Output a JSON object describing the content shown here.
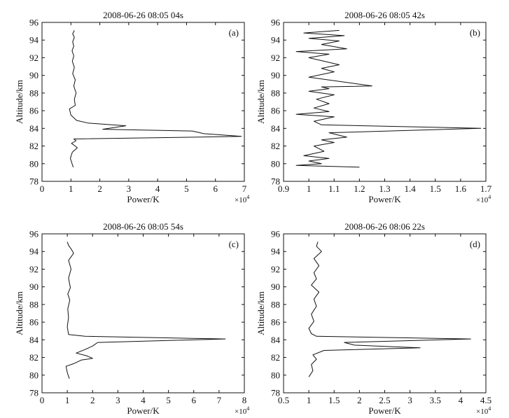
{
  "chart_data": [
    {
      "type": "line",
      "panel_label": "(a)",
      "title": "2008-06-26 08:05 04s",
      "xlabel": "Power/K",
      "ylabel": "Altitude/km",
      "x_multiplier": "×10",
      "x_multiplier_exp": "4",
      "xlim": [
        0,
        7
      ],
      "ylim": [
        78,
        96
      ],
      "xticks": [
        0,
        1,
        2,
        3,
        4,
        5,
        6,
        7
      ],
      "xtick_labels": [
        "0",
        "1",
        "2",
        "3",
        "4",
        "5",
        "6",
        "7"
      ],
      "yticks": [
        78,
        80,
        82,
        84,
        86,
        88,
        90,
        92,
        94,
        96
      ],
      "ytick_labels": [
        "78",
        "80",
        "82",
        "84",
        "86",
        "88",
        "90",
        "92",
        "94",
        "96"
      ],
      "series": [
        {
          "x": [
            1.08,
            1.03,
            0.98,
            1.05,
            1.22,
            1.15,
            1.02,
            1.18,
            1.1,
            5.3,
            6.9,
            5.6,
            5.2,
            2.1,
            2.9,
            1.6,
            1.2,
            1.0,
            0.95,
            1.15,
            1.12,
            1.18,
            1.1,
            1.15,
            1.06,
            1.12,
            1.05,
            1.1,
            1.04,
            1.1,
            1.06,
            1.12,
            1.06,
            1.12
          ],
          "y": [
            79.6,
            80.1,
            80.6,
            81.3,
            81.8,
            82.0,
            82.3,
            82.6,
            82.8,
            83.0,
            83.1,
            83.4,
            83.7,
            83.9,
            84.3,
            84.6,
            84.9,
            85.5,
            86.2,
            86.6,
            87.3,
            88.0,
            88.8,
            89.5,
            90.2,
            90.9,
            91.6,
            92.2,
            92.8,
            93.3,
            93.8,
            94.3,
            94.7,
            95.1
          ]
        }
      ]
    },
    {
      "type": "line",
      "panel_label": "(b)",
      "title": "2008-06-26 08:05 42s",
      "xlabel": "Power/K",
      "ylabel": "Altitude/km",
      "x_multiplier": "×10",
      "x_multiplier_exp": "4",
      "xlim": [
        0.9,
        1.7
      ],
      "ylim": [
        78,
        96
      ],
      "xticks": [
        0.9,
        1.0,
        1.1,
        1.2,
        1.3,
        1.4,
        1.5,
        1.6,
        1.7
      ],
      "xtick_labels": [
        "0.9",
        "1",
        "1.1",
        "1.2",
        "1.3",
        "1.4",
        "1.5",
        "1.6",
        "1.7"
      ],
      "yticks": [
        78,
        80,
        82,
        84,
        86,
        88,
        90,
        92,
        94,
        96
      ],
      "ytick_labels": [
        "78",
        "80",
        "82",
        "84",
        "86",
        "88",
        "90",
        "92",
        "94",
        "96"
      ],
      "series": [
        {
          "x": [
            1.2,
            0.95,
            1.05,
            1.0,
            1.08,
            0.98,
            1.06,
            1.02,
            1.1,
            1.05,
            1.15,
            1.08,
            1.68,
            1.05,
            1.02,
            1.1,
            0.95,
            1.08,
            1.02,
            1.08,
            1.03,
            1.1,
            1.0,
            1.08,
            1.05,
            1.25,
            1.0,
            1.1,
            1.05,
            1.12,
            1.0,
            1.08,
            0.95,
            1.15,
            1.05,
            1.12,
            1.0,
            1.14,
            0.98,
            1.12
          ],
          "y": [
            79.6,
            79.8,
            80.0,
            80.3,
            80.6,
            80.9,
            81.4,
            82.0,
            82.4,
            82.7,
            83.0,
            83.5,
            84.0,
            84.4,
            84.8,
            85.3,
            85.6,
            85.9,
            86.3,
            86.8,
            87.3,
            87.8,
            88.2,
            88.5,
            88.7,
            88.8,
            89.8,
            90.4,
            90.8,
            91.2,
            92.0,
            92.4,
            92.7,
            93.0,
            93.5,
            93.9,
            94.2,
            94.5,
            94.8,
            95.1
          ]
        }
      ]
    },
    {
      "type": "line",
      "panel_label": "(c)",
      "title": "2008-06-26 08:05 54s",
      "xlabel": "Power/K",
      "ylabel": "Altitude/km",
      "x_multiplier": "×10",
      "x_multiplier_exp": "4",
      "xlim": [
        0,
        8
      ],
      "ylim": [
        78,
        96
      ],
      "xticks": [
        0,
        1,
        2,
        3,
        4,
        5,
        6,
        7,
        8
      ],
      "xtick_labels": [
        "0",
        "1",
        "2",
        "3",
        "4",
        "5",
        "6",
        "7",
        "8"
      ],
      "yticks": [
        78,
        80,
        82,
        84,
        86,
        88,
        90,
        92,
        94,
        96
      ],
      "ytick_labels": [
        "78",
        "80",
        "82",
        "84",
        "86",
        "88",
        "90",
        "92",
        "94",
        "96"
      ],
      "series": [
        {
          "x": [
            1.08,
            1.0,
            0.95,
            1.25,
            1.55,
            2.0,
            1.75,
            1.35,
            1.7,
            2.0,
            2.2,
            7.25,
            1.7,
            1.05,
            1.0,
            1.05,
            1.02,
            1.1,
            1.02,
            1.12,
            1.05,
            1.15,
            1.05,
            1.25,
            1.15,
            1.05,
            1.0
          ],
          "y": [
            79.6,
            80.3,
            81.0,
            81.3,
            81.7,
            81.9,
            82.2,
            82.5,
            82.9,
            83.3,
            83.7,
            84.1,
            84.4,
            84.6,
            85.5,
            86.5,
            87.5,
            88.5,
            89.2,
            89.9,
            91.0,
            92.0,
            93.0,
            93.8,
            94.3,
            94.7,
            95.1
          ]
        }
      ]
    },
    {
      "type": "line",
      "panel_label": "(d)",
      "title": "2008-06-26 08:06 22s",
      "xlabel": "Power/K",
      "ylabel": "Altitude/km",
      "x_multiplier": "×10",
      "x_multiplier_exp": "4",
      "xlim": [
        0.5,
        4.5
      ],
      "ylim": [
        78,
        96
      ],
      "xticks": [
        0.5,
        1.0,
        1.5,
        2.0,
        2.5,
        3.0,
        3.5,
        4.0,
        4.5
      ],
      "xtick_labels": [
        "0.5",
        "1",
        "1.5",
        "2",
        "2.5",
        "3",
        "3.5",
        "4",
        "4.5"
      ],
      "yticks": [
        78,
        80,
        82,
        84,
        86,
        88,
        90,
        92,
        94,
        96
      ],
      "ytick_labels": [
        "78",
        "80",
        "82",
        "84",
        "86",
        "88",
        "90",
        "92",
        "94",
        "96"
      ],
      "series": [
        {
          "x": [
            1.0,
            1.08,
            1.05,
            1.15,
            1.08,
            1.3,
            3.2,
            1.9,
            1.7,
            4.2,
            1.15,
            1.05,
            1.0,
            1.1,
            1.05,
            1.15,
            1.1,
            1.2,
            1.05,
            1.15,
            1.1,
            1.2,
            1.1,
            1.25,
            1.15,
            1.18
          ],
          "y": [
            79.8,
            80.5,
            81.2,
            81.8,
            82.3,
            82.8,
            83.1,
            83.4,
            83.7,
            84.1,
            84.4,
            84.7,
            85.3,
            86.1,
            86.9,
            87.8,
            88.6,
            89.4,
            90.2,
            90.9,
            91.6,
            92.4,
            93.2,
            94.0,
            94.6,
            95.1
          ]
        }
      ]
    }
  ]
}
